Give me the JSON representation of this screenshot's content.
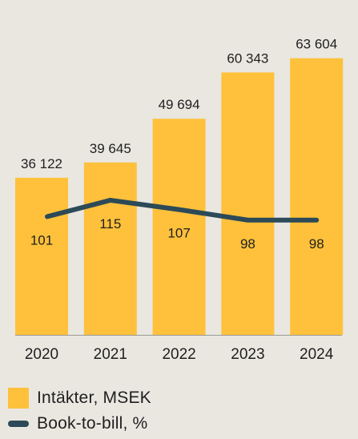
{
  "chart_data": {
    "type": "bar",
    "categories": [
      "2020",
      "2021",
      "2022",
      "2023",
      "2024"
    ],
    "series": [
      {
        "name": "Intäkter, MSEK",
        "type": "bar",
        "values": [
          36122,
          39645,
          49694,
          60343,
          63604
        ],
        "labels": [
          "36 122",
          "39 645",
          "49 694",
          "60 343",
          "63 604"
        ],
        "color": "#ffc13b"
      },
      {
        "name": "Book-to-bill, %",
        "type": "line",
        "values": [
          101,
          115,
          107,
          98,
          98
        ],
        "labels": [
          "101",
          "115",
          "107",
          "98",
          "98"
        ],
        "color": "#2c4a57"
      }
    ],
    "ylim_bar": [
      0,
      70000
    ],
    "line_ylim": [
      0,
      260
    ],
    "grid": false,
    "legend_placement": "bottom-left"
  }
}
